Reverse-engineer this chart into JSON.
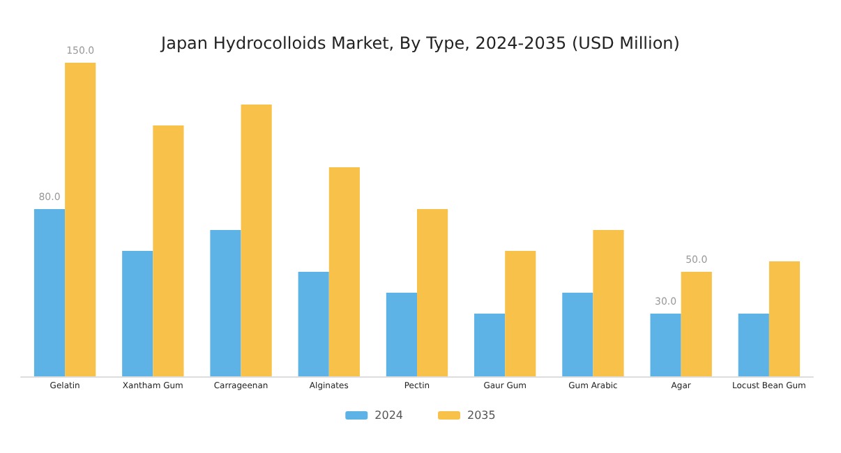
{
  "chart_data": {
    "type": "bar",
    "title": "Japan Hydrocolloids Market, By Type, 2024-2035 (USD Million)",
    "categories": [
      "Gelatin",
      "Xantham Gum",
      "Carrageenan",
      "Alginates",
      "Pectin",
      "Gaur Gum",
      "Gum Arabic",
      "Agar",
      "Locust Bean Gum"
    ],
    "series": [
      {
        "name": "2024",
        "color": "#5db3e6",
        "values": [
          80,
          60,
          70,
          50,
          40,
          30,
          40,
          30,
          30
        ],
        "value_labels": [
          "80.0",
          null,
          null,
          null,
          null,
          null,
          null,
          "30.0",
          null
        ]
      },
      {
        "name": "2035",
        "color": "#f8c24a",
        "values": [
          150,
          120,
          130,
          100,
          80,
          60,
          70,
          50,
          55
        ],
        "value_labels": [
          "150.0",
          null,
          null,
          null,
          null,
          null,
          null,
          "50.0",
          null
        ]
      }
    ],
    "legend": "bottom",
    "grid": false
  }
}
